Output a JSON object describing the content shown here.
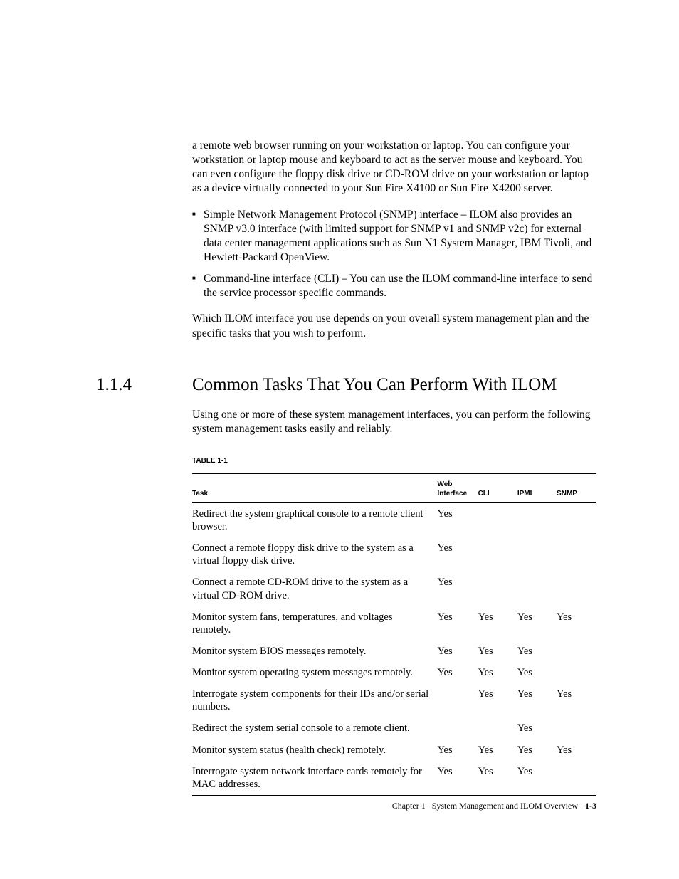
{
  "intro": {
    "para1": "a remote web browser running on your workstation or laptop. You can configure your workstation or laptop mouse and keyboard to act as the server mouse and keyboard. You can even configure the floppy disk drive or CD-ROM drive on your workstation or laptop as a device virtually connected to your Sun Fire X4100 or Sun Fire X4200 server.",
    "bullet1": "Simple Network Management Protocol (SNMP) interface – ILOM also provides an SNMP v3.0 interface (with limited support for SNMP v1 and SNMP v2c) for external data center management applications such as Sun N1 System Manager, IBM Tivoli, and Hewlett-Packard OpenView.",
    "bullet2": "Command-line interface (CLI) – You can use the ILOM command-line interface to send the service processor specific commands.",
    "para2": "Which ILOM interface you use depends on your overall system management plan and the specific tasks that you wish to perform."
  },
  "section": {
    "number": "1.1.4",
    "title": "Common Tasks That You Can Perform With ILOM",
    "lead": "Using one or more of these system management interfaces, you can perform the following system management tasks easily and reliably."
  },
  "table": {
    "label": "TABLE 1-1",
    "columns": [
      "Task",
      "Web Interface",
      "CLI",
      "IPMI",
      "SNMP"
    ],
    "rows": [
      [
        "Redirect the system graphical console to a remote client browser.",
        "Yes",
        "",
        "",
        ""
      ],
      [
        "Connect a remote floppy disk drive to the system as a virtual floppy disk drive.",
        "Yes",
        "",
        "",
        ""
      ],
      [
        "Connect a remote CD-ROM drive to the system as a virtual CD-ROM drive.",
        "Yes",
        "",
        "",
        ""
      ],
      [
        "Monitor system fans, temperatures, and voltages remotely.",
        "Yes",
        "Yes",
        "Yes",
        "Yes"
      ],
      [
        "Monitor system BIOS messages remotely.",
        "Yes",
        "Yes",
        "Yes",
        ""
      ],
      [
        "Monitor system operating system messages remotely.",
        "Yes",
        "Yes",
        "Yes",
        ""
      ],
      [
        "Interrogate system components for their IDs and/or serial numbers.",
        "",
        "Yes",
        "Yes",
        "Yes"
      ],
      [
        "Redirect the system serial console to a remote client.",
        "",
        "",
        "Yes",
        ""
      ],
      [
        "Monitor system status (health check) remotely.",
        "Yes",
        "Yes",
        "Yes",
        "Yes"
      ],
      [
        "Interrogate system network interface cards remotely for MAC addresses.",
        "Yes",
        "Yes",
        "Yes",
        ""
      ]
    ]
  },
  "footer": {
    "chapter": "Chapter 1",
    "title": "System Management and ILOM Overview",
    "page": "1-3"
  }
}
